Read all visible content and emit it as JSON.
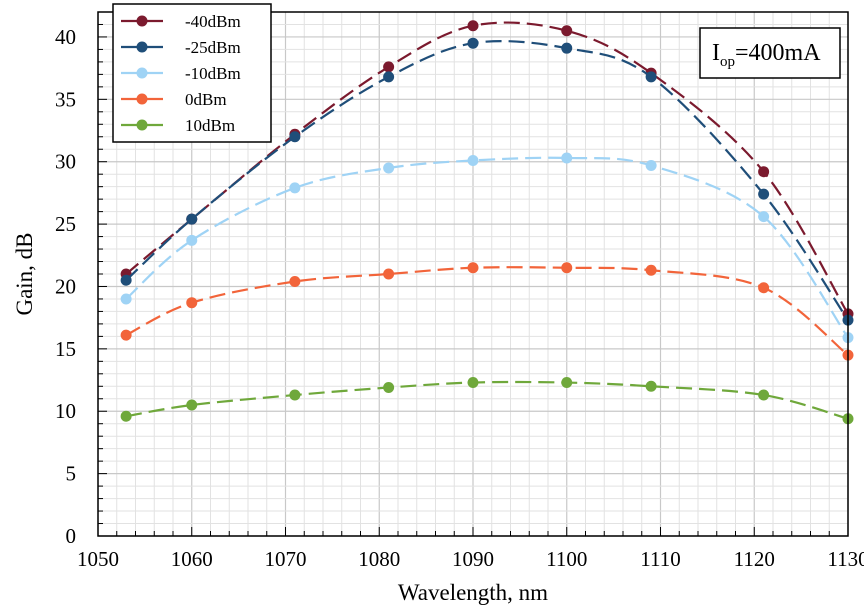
{
  "chart_data": {
    "type": "line",
    "xlabel": "Wavelength, nm",
    "ylabel": "Gain, dB",
    "xlim": [
      1050,
      1130
    ],
    "ylim": [
      0,
      42
    ],
    "xticks": [
      1050,
      1060,
      1070,
      1080,
      1090,
      1100,
      1110,
      1120,
      1130
    ],
    "yticks": [
      0,
      5,
      10,
      15,
      20,
      25,
      30,
      35,
      40
    ],
    "x_minor_step": 2,
    "y_minor_step": 1,
    "grid": true,
    "legend_position": "top-left",
    "annotation": {
      "main": "I",
      "subscript": "op",
      "suffix": "=400mA",
      "position": "top-right"
    },
    "x": [
      1053,
      1060,
      1071,
      1081,
      1090,
      1100,
      1109,
      1121,
      1130
    ],
    "series": [
      {
        "name": "-40dBm",
        "color": "#7b1a2e",
        "values": [
          21.0,
          25.4,
          32.2,
          37.6,
          40.9,
          40.5,
          37.1,
          29.2,
          17.8
        ]
      },
      {
        "name": "-25dBm",
        "color": "#1f4e79",
        "values": [
          20.5,
          25.4,
          32.0,
          36.8,
          39.5,
          39.1,
          36.8,
          27.4,
          17.3
        ]
      },
      {
        "name": "-10dBm",
        "color": "#9fd3f5",
        "values": [
          19.0,
          23.7,
          27.9,
          29.5,
          30.1,
          30.3,
          29.7,
          25.6,
          15.9
        ]
      },
      {
        "name": "0dBm",
        "color": "#f2643a",
        "values": [
          16.1,
          18.7,
          20.4,
          21.0,
          21.5,
          21.5,
          21.3,
          19.9,
          14.5
        ]
      },
      {
        "name": "10dBm",
        "color": "#6fa83b",
        "values": [
          9.6,
          10.5,
          11.3,
          11.9,
          12.3,
          12.3,
          12.0,
          11.3,
          9.4
        ]
      }
    ]
  }
}
